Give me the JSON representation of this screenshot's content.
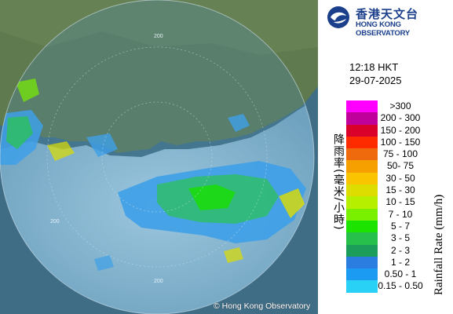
{
  "header": {
    "org_name_cn": "香港天文台",
    "org_name_en": "HONG KONG OBSERVATORY",
    "time": "12:18 HKT",
    "date": "29-07-2025"
  },
  "map": {
    "copyright": "© Hong Kong Observatory",
    "range_ring_label": "200"
  },
  "legend": {
    "axis_label_cn": "降雨率(毫米/小時)",
    "axis_label_en": "Rainfall Rate (mm/h)",
    "items": [
      {
        "label": ">300",
        "color": "#ff00ff"
      },
      {
        "label": "200 - 300",
        "color": "#c0009a"
      },
      {
        "label": "150 - 200",
        "color": "#d9002a"
      },
      {
        "label": "100 - 150",
        "color": "#ff2b00"
      },
      {
        "label": "75 - 100",
        "color": "#ee6a0c"
      },
      {
        "label": "50- 75",
        "color": "#f6a000"
      },
      {
        "label": "30 - 50",
        "color": "#fbc400"
      },
      {
        "label": "15 - 30",
        "color": "#dddd00"
      },
      {
        "label": "10 - 15",
        "color": "#b6f000"
      },
      {
        "label": "7 - 10",
        "color": "#78f000"
      },
      {
        "label": "5 - 7",
        "color": "#1ce300"
      },
      {
        "label": "3 - 5",
        "color": "#26c04a"
      },
      {
        "label": "2 - 3",
        "color": "#1c9e5a"
      },
      {
        "label": "1 - 2",
        "color": "#2c7de0"
      },
      {
        "label": "0.50 - 1",
        "color": "#1b9bf2"
      },
      {
        "label": "0.15 - 0.50",
        "color": "#2ad1f7"
      }
    ]
  }
}
